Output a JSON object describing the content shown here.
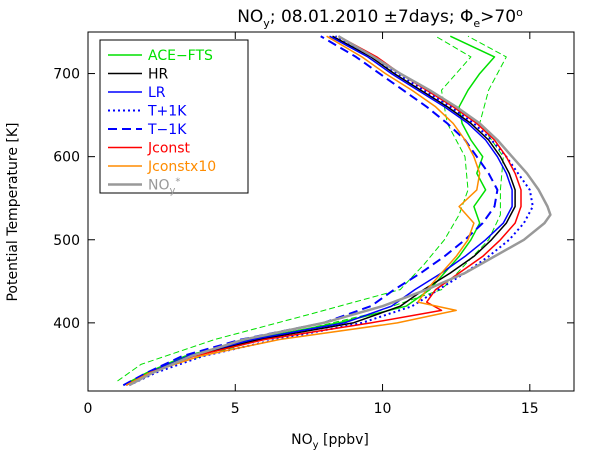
{
  "chart_data": {
    "type": "line",
    "title": "NOᵧ; 08.01.2010 ±7days; Φₑ>70°",
    "title_parts": {
      "main": "NO",
      "sub": "y",
      "rest1": "; 08.01.2010 ±7days; Φ",
      "sub2": "e",
      "rest2": ">70",
      "sup": "o"
    },
    "xlabel_parts": {
      "main": "NO",
      "sub": "y",
      "rest": " [ppbv]"
    },
    "ylabel": "Potential Temperature [K]",
    "xlim": [
      0,
      16.5
    ],
    "ylim": [
      318,
      750
    ],
    "xticks": [
      0,
      5,
      10,
      15
    ],
    "yticks": [
      400,
      500,
      600,
      700
    ],
    "grid": false,
    "legend_position": "top-left",
    "series": [
      {
        "name": "ACE-FTS",
        "color": "#00e000",
        "dash": "solid",
        "width": 1.5,
        "y": [
          325,
          340,
          360,
          380,
          400,
          420,
          440,
          460,
          480,
          500,
          520,
          540,
          560,
          580,
          600,
          620,
          640,
          660,
          680,
          700,
          720,
          745
        ],
        "x": [
          1.2,
          2.0,
          3.3,
          5.5,
          8.5,
          10.8,
          11.6,
          12.1,
          12.6,
          13.0,
          13.3,
          13.1,
          13.5,
          13.2,
          13.4,
          13.0,
          12.7,
          12.6,
          12.9,
          13.3,
          13.8,
          12.3
        ]
      },
      {
        "name": "ACE-FTS (upper)",
        "legend": false,
        "color": "#00e000",
        "dash": "6,3",
        "width": 1,
        "y": [
          330,
          350,
          380,
          410,
          440,
          470,
          500,
          530,
          560,
          600,
          640,
          680,
          720,
          745
        ],
        "x": [
          1.6,
          2.9,
          5.9,
          9.5,
          12.0,
          12.8,
          13.6,
          14.0,
          14.0,
          14.1,
          13.3,
          13.6,
          14.2,
          12.9
        ]
      },
      {
        "name": "ACE-FTS (lower)",
        "legend": false,
        "color": "#00e000",
        "dash": "6,3",
        "width": 1,
        "y": [
          330,
          350,
          380,
          410,
          440,
          470,
          500,
          530,
          560,
          600,
          640,
          680,
          720,
          745
        ],
        "x": [
          1.0,
          1.8,
          4.3,
          7.5,
          10.6,
          11.4,
          12.1,
          12.6,
          12.9,
          12.8,
          12.2,
          12.0,
          13.0,
          11.8
        ]
      },
      {
        "name": "HR",
        "color": "#000000",
        "dash": "solid",
        "width": 1.5,
        "y": [
          325,
          340,
          360,
          380,
          400,
          420,
          440,
          460,
          480,
          500,
          520,
          540,
          560,
          580,
          600,
          620,
          640,
          660,
          680,
          700,
          720,
          745
        ],
        "x": [
          1.3,
          2.1,
          3.5,
          5.8,
          9.0,
          10.6,
          11.4,
          12.3,
          13.1,
          13.7,
          14.2,
          14.5,
          14.5,
          14.3,
          14.0,
          13.6,
          13.0,
          12.2,
          11.3,
          10.4,
          9.6,
          8.3
        ]
      },
      {
        "name": "LR",
        "color": "#0000ff",
        "dash": "solid",
        "width": 1.5,
        "y": [
          325,
          340,
          360,
          380,
          400,
          420,
          440,
          460,
          480,
          500,
          520,
          540,
          560,
          580,
          600,
          620,
          640,
          660,
          680,
          700,
          720,
          745
        ],
        "x": [
          1.3,
          2.1,
          3.4,
          5.6,
          8.7,
          10.3,
          11.1,
          12.0,
          12.8,
          13.5,
          14.1,
          14.4,
          14.4,
          14.2,
          13.9,
          13.5,
          12.9,
          12.1,
          11.2,
          10.3,
          9.5,
          8.2
        ]
      },
      {
        "name": "T+1K",
        "color": "#0000ff",
        "dash": "2,3",
        "width": 2,
        "y": [
          325,
          340,
          360,
          380,
          400,
          420,
          440,
          460,
          480,
          500,
          520,
          540,
          560,
          580,
          600,
          620,
          640,
          660,
          680,
          700,
          720,
          745
        ],
        "x": [
          1.4,
          2.3,
          3.9,
          6.4,
          9.3,
          11.0,
          11.9,
          12.8,
          13.6,
          14.3,
          14.8,
          15.1,
          15.0,
          14.6,
          14.2,
          13.7,
          13.1,
          12.3,
          11.4,
          10.5,
          9.7,
          8.4
        ]
      },
      {
        "name": "T−1K",
        "color": "#0000ff",
        "dash": "9,5",
        "width": 2,
        "y": [
          325,
          340,
          360,
          380,
          400,
          420,
          440,
          460,
          480,
          500,
          520,
          540,
          560,
          580,
          600,
          620,
          640,
          660,
          680,
          700,
          720,
          745
        ],
        "x": [
          1.2,
          2.0,
          3.2,
          5.2,
          8.0,
          9.6,
          10.4,
          11.3,
          12.1,
          12.8,
          13.4,
          13.8,
          13.9,
          13.6,
          13.2,
          12.8,
          12.2,
          11.5,
          10.7,
          9.9,
          9.1,
          7.9
        ]
      },
      {
        "name": "Jconst",
        "color": "#ff0000",
        "dash": "solid",
        "width": 1.5,
        "y": [
          325,
          340,
          360,
          380,
          400,
          415,
          425,
          440,
          460,
          480,
          500,
          520,
          540,
          560,
          580,
          600,
          620,
          640,
          660,
          680,
          700,
          720,
          745
        ],
        "x": [
          1.3,
          2.1,
          3.6,
          6.0,
          9.6,
          12.0,
          11.5,
          11.8,
          12.6,
          13.4,
          14.0,
          14.5,
          14.7,
          14.7,
          14.5,
          14.2,
          13.8,
          13.2,
          12.4,
          11.5,
          10.6,
          9.8,
          8.5
        ]
      },
      {
        "name": "Jconstx10",
        "color": "#ff8c00",
        "dash": "solid",
        "width": 1.5,
        "y": [
          325,
          340,
          360,
          380,
          400,
          415,
          425,
          440,
          460,
          480,
          500,
          520,
          540,
          560,
          580,
          600,
          620,
          640,
          660,
          680,
          700,
          720,
          745
        ],
        "x": [
          1.3,
          2.1,
          3.8,
          6.5,
          10.5,
          12.5,
          11.2,
          11.5,
          12.0,
          12.5,
          12.9,
          13.1,
          12.6,
          13.2,
          13.3,
          13.1,
          12.8,
          12.4,
          11.8,
          11.0,
          10.1,
          9.3,
          8.1
        ]
      },
      {
        "name": "NOᵧ*",
        "color": "#999999",
        "dash": "solid",
        "width": 2.5,
        "y": [
          325,
          340,
          360,
          380,
          400,
          420,
          440,
          460,
          480,
          500,
          520,
          530,
          540,
          560,
          580,
          600,
          620,
          640,
          660,
          680,
          700,
          720,
          745
        ],
        "x": [
          1.4,
          2.2,
          3.5,
          5.3,
          8.0,
          10.0,
          11.5,
          12.8,
          13.8,
          14.8,
          15.5,
          15.7,
          15.6,
          15.3,
          14.9,
          14.4,
          13.9,
          13.3,
          12.5,
          11.6,
          10.6,
          9.7,
          8.5
        ]
      }
    ],
    "legend_labels": [
      {
        "main": "ACE−FTS",
        "sub": "",
        "sup": ""
      },
      {
        "main": "HR",
        "sub": "",
        "sup": ""
      },
      {
        "main": "LR",
        "sub": "",
        "sup": ""
      },
      {
        "main": "T+1K",
        "sub": "",
        "sup": ""
      },
      {
        "main": "T−1K",
        "sub": "",
        "sup": ""
      },
      {
        "main": "Jconst",
        "sub": "",
        "sup": ""
      },
      {
        "main": "Jconstx10",
        "sub": "",
        "sup": ""
      },
      {
        "main": "NO",
        "sub": "y",
        "sup": "*"
      }
    ]
  }
}
